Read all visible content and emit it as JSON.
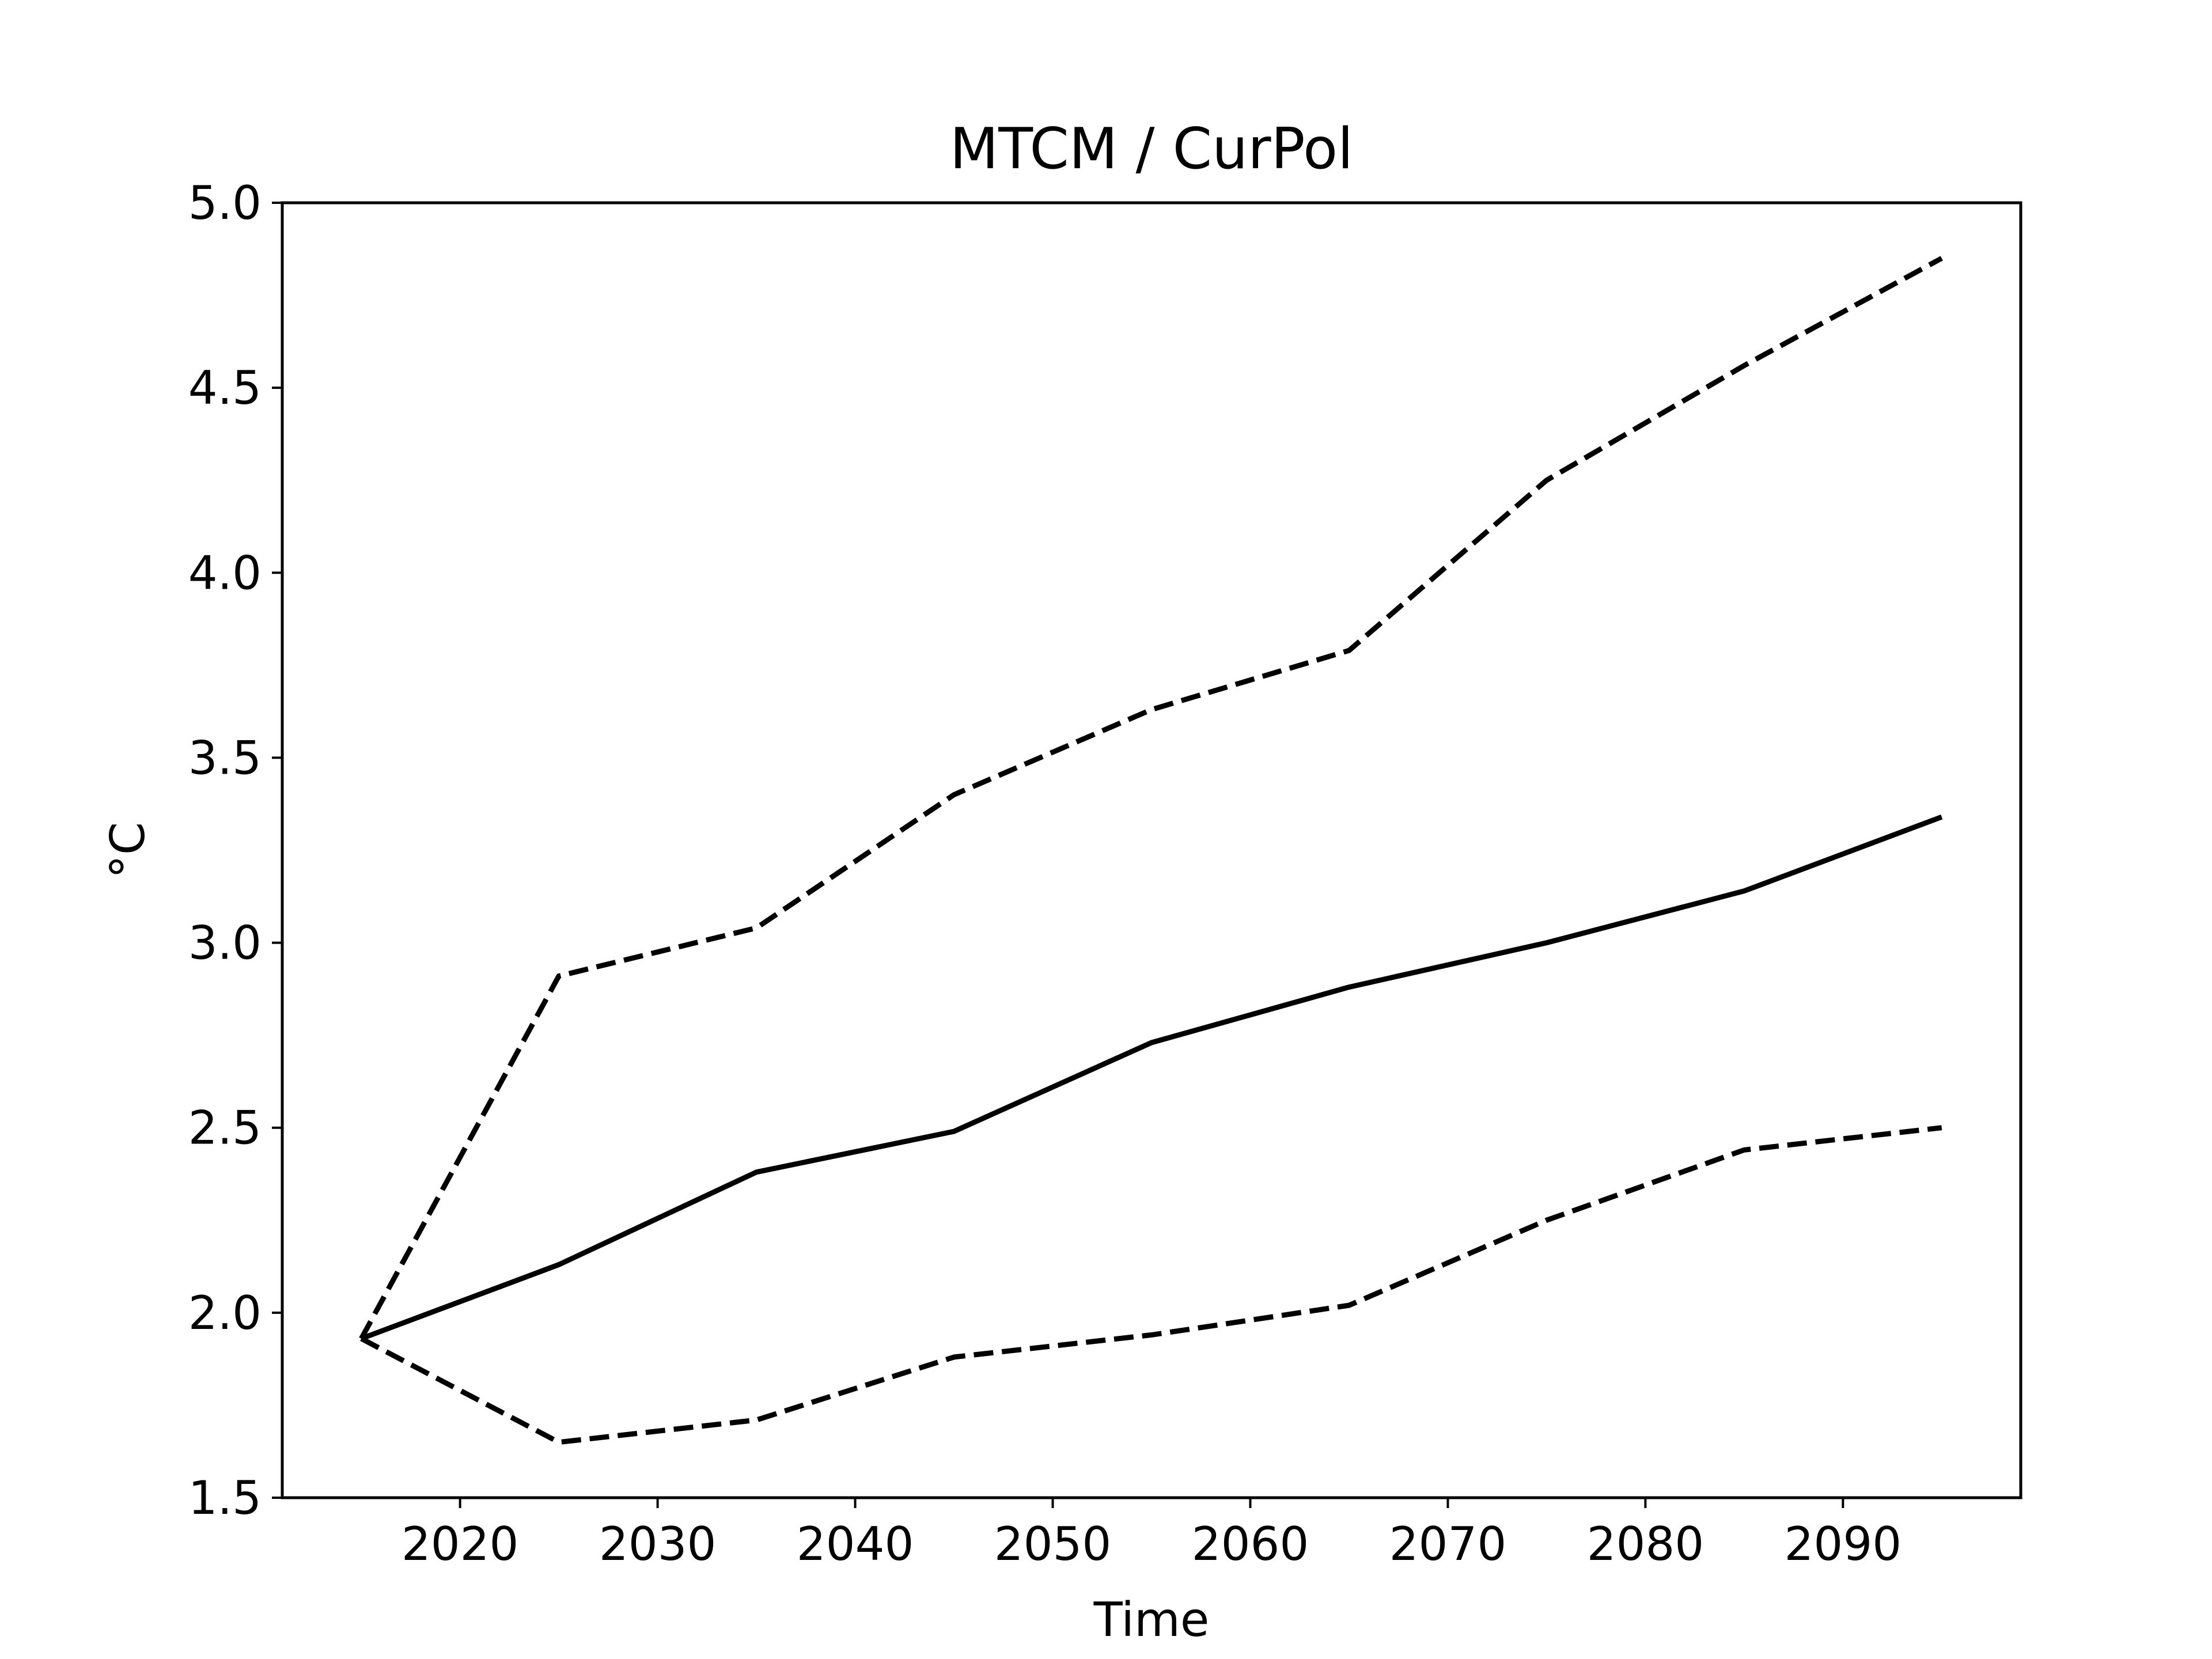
{
  "chart_data": {
    "type": "line",
    "title": "MTCM / CurPol",
    "xlabel": "Time",
    "ylabel": "°C",
    "x": [
      2015,
      2025,
      2035,
      2045,
      2055,
      2065,
      2075,
      2085,
      2095
    ],
    "series": [
      {
        "style": "solid",
        "color": "#000000",
        "values": [
          1.93,
          2.13,
          2.38,
          2.49,
          2.73,
          2.88,
          3.0,
          3.14,
          3.34
        ]
      },
      {
        "style": "dashed",
        "color": "#000000",
        "values": [
          1.93,
          2.91,
          3.04,
          3.4,
          3.63,
          3.79,
          4.25,
          4.56,
          4.85
        ]
      },
      {
        "style": "dashed",
        "color": "#000000",
        "values": [
          1.93,
          1.65,
          1.71,
          1.88,
          1.94,
          2.02,
          2.25,
          2.44,
          2.5
        ]
      }
    ],
    "xlim": [
      2011,
      2099
    ],
    "ylim": [
      1.5,
      5.0
    ],
    "xticks": [
      2020,
      2030,
      2040,
      2050,
      2060,
      2070,
      2080,
      2090
    ],
    "xtick_labels": [
      "2020",
      "2030",
      "2040",
      "2050",
      "2060",
      "2070",
      "2080",
      "2090"
    ],
    "yticks": [
      1.5,
      2.0,
      2.5,
      3.0,
      3.5,
      4.0,
      4.5,
      5.0
    ],
    "ytick_labels": [
      "1.5",
      "2.0",
      "2.5",
      "3.0",
      "3.5",
      "4.0",
      "4.5",
      "5.0"
    ],
    "grid": false,
    "legend": "none"
  }
}
